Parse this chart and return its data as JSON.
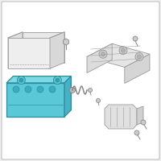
{
  "bg_color": "#f5f5f5",
  "outline_color": "#aaaaaa",
  "battery_fill": "#5bc8d8",
  "battery_outline": "#2a8a9a",
  "part_outline": "#999999",
  "part_fill": "#ffffff",
  "screw_color": "#888888",
  "fig_bg": "#f0f0f0",
  "border_color": "#cccccc"
}
